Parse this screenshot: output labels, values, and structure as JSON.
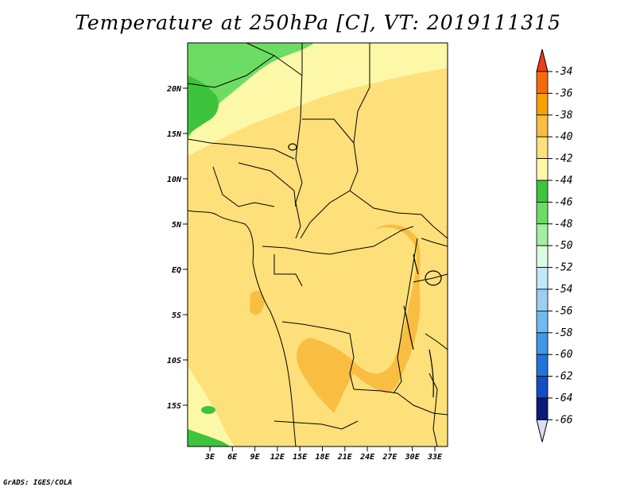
{
  "title": "Temperature at 250hPa [C], VT: 2019111315",
  "credit": "GrADS: IGES/COLA",
  "lat_labels": [
    "20N",
    "15N",
    "10N",
    "5N",
    "EQ",
    "5S",
    "10S",
    "15S"
  ],
  "lon_labels": [
    "3E",
    "6E",
    "9E",
    "12E",
    "15E",
    "18E",
    "21E",
    "24E",
    "27E",
    "30E",
    "33E"
  ],
  "colorbar": {
    "labels": [
      "-34",
      "-36",
      "-38",
      "-40",
      "-42",
      "-44",
      "-46",
      "-48",
      "-50",
      "-52",
      "-54",
      "-56",
      "-58",
      "-60",
      "-62",
      "-64",
      "-66"
    ],
    "colors": [
      "#f03c1e",
      "#f46c0a",
      "#f7a000",
      "#f9bd42",
      "#fde07a",
      "#fdf7a8",
      "#3dc43c",
      "#6ddc64",
      "#a3eea0",
      "#dcfbe2",
      "#bfe9f8",
      "#9acff2",
      "#6ebbef",
      "#3f97e8",
      "#2074dc",
      "#124dc2",
      "#0a1a78",
      "#dcdcf4"
    ]
  },
  "map_fills": {
    "base": "#fde07a",
    "pale": "#fdf7a8",
    "warm": "#f9bd42",
    "green": "#6ddc64",
    "dark_green": "#3dc43c"
  }
}
